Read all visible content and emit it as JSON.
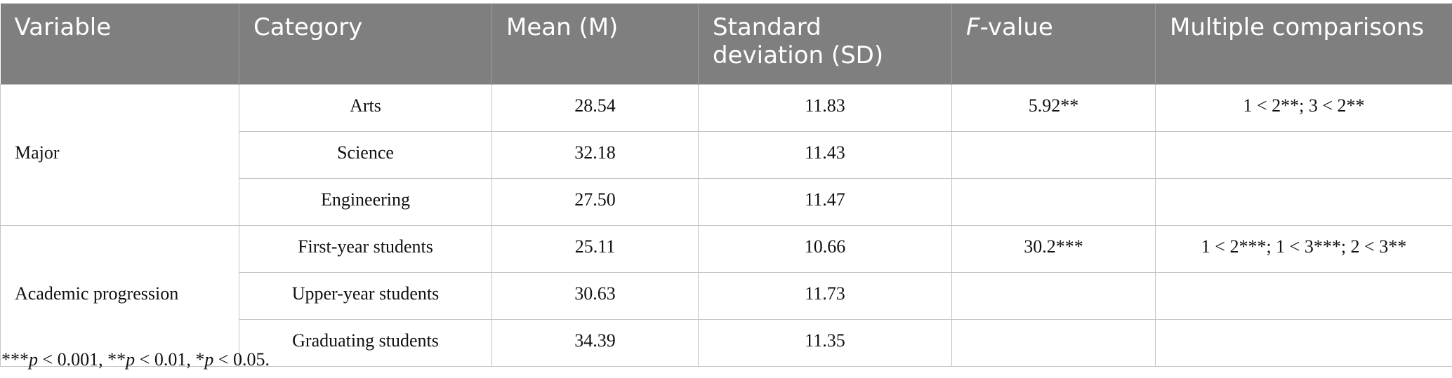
{
  "header": [
    "Variable",
    "Category",
    "Mean (M)",
    "Standard deviation (SD)",
    [
      "F",
      "-value"
    ],
    "Multiple comparisons"
  ],
  "groups": [
    {
      "variable": "Major",
      "f_value": "5.92**",
      "comparisons": "1 < 2**; 3 < 2**",
      "rows": [
        [
          "Arts",
          "28.54",
          "11.83"
        ],
        [
          "Science",
          "32.18",
          "11.43"
        ],
        [
          "Engineering",
          "27.50",
          "11.47"
        ]
      ]
    },
    {
      "variable": "Academic progression",
      "f_value": "30.2***",
      "comparisons": "1 < 2***; 1 < 3***; 2 < 3**",
      "rows": [
        [
          "First-year students",
          "25.11",
          "10.66"
        ],
        [
          "Upper-year students",
          "30.63",
          "11.73"
        ],
        [
          "Graduating students",
          "34.39",
          "11.35"
        ]
      ]
    }
  ],
  "footnote": [
    "***",
    "p",
    " < 0.001, **",
    "p",
    " < 0.01, *",
    "p",
    " < 0.05."
  ]
}
